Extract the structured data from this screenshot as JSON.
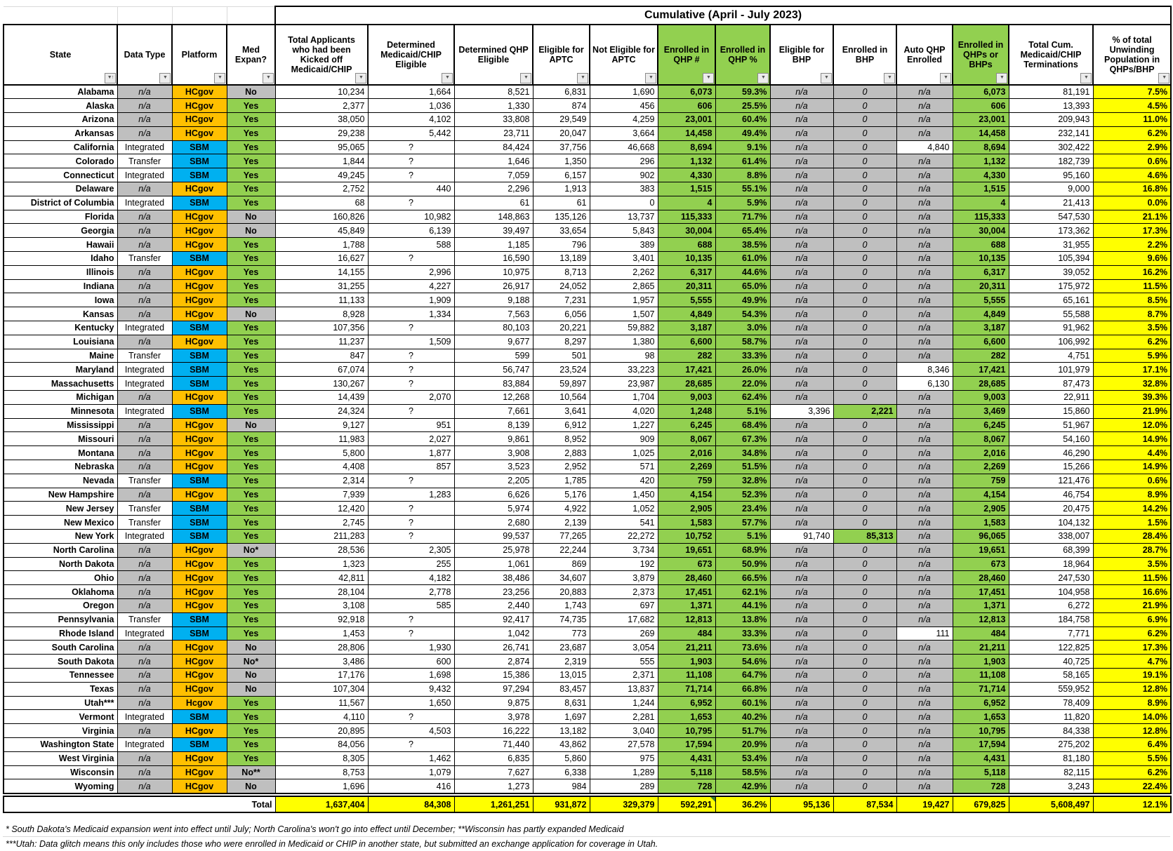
{
  "title": "Cumulative (April - July 2023)",
  "icons": {
    "filter": "▼",
    "sort_ascending": "↑"
  },
  "colors": {
    "platform_hcgov": "#FFC000",
    "platform_sbm": "#00B0F0",
    "yes_green": "#92D050",
    "no_grey": "#BFBFBF",
    "pct_yellow": "#FFFF00",
    "qhp_green": "#92D050"
  },
  "columns": [
    {
      "id": "state",
      "label": "State"
    },
    {
      "id": "data-type",
      "label": "Data Type"
    },
    {
      "id": "platform",
      "label": "Platform"
    },
    {
      "id": "med-expan",
      "label": "Med Expan?"
    },
    {
      "id": "total-applicants",
      "label": "Total Applicants who had been Kicked off Medicaid/CHIP"
    },
    {
      "id": "determined-medicaid-chip-eligible",
      "label": "Determined Medicaid/CHIP Eligible"
    },
    {
      "id": "determined-qhp-eligible",
      "label": "Determined QHP Eligible"
    },
    {
      "id": "eligible-for-aptc",
      "label": "Eligible for APTC"
    },
    {
      "id": "not-eligible-for-aptc",
      "label": "Not Eligible for APTC"
    },
    {
      "id": "enrolled-in-qhp-num",
      "label": "Enrolled in QHP #",
      "header_green": true
    },
    {
      "id": "enrolled-in-qhp-pct",
      "label": "Enrolled in QHP %",
      "header_green": true
    },
    {
      "id": "eligible-for-bhp",
      "label": "Eligible for BHP"
    },
    {
      "id": "enrolled-in-bhp",
      "label": "Enrolled in BHP"
    },
    {
      "id": "auto-qhp-enrolled",
      "label": "Auto QHP Enrolled"
    },
    {
      "id": "enrolled-in-qhps-or-bhps",
      "label": "Enrolled in QHPs or BHPs",
      "header_green": true
    },
    {
      "id": "total-cum-terminations",
      "label": "Total Cum. Medicaid/CHIP Terminations"
    },
    {
      "id": "pct-unwinding",
      "label": "% of total Unwinding Population in QHPs/BHP"
    }
  ],
  "rows": [
    [
      "Alabama",
      "n/a",
      "HCgov",
      "No",
      "10,234",
      "1,664",
      "8,521",
      "6,831",
      "1,690",
      "6,073",
      "59.3%",
      "n/a",
      "0",
      "n/a",
      "6,073",
      "81,191",
      "7.5%"
    ],
    [
      "Alaska",
      "n/a",
      "HCgov",
      "Yes",
      "2,377",
      "1,036",
      "1,330",
      "874",
      "456",
      "606",
      "25.5%",
      "n/a",
      "0",
      "n/a",
      "606",
      "13,393",
      "4.5%"
    ],
    [
      "Arizona",
      "n/a",
      "HCgov",
      "Yes",
      "38,050",
      "4,102",
      "33,808",
      "29,549",
      "4,259",
      "23,001",
      "60.4%",
      "n/a",
      "0",
      "n/a",
      "23,001",
      "209,943",
      "11.0%"
    ],
    [
      "Arkansas",
      "n/a",
      "HCgov",
      "Yes",
      "29,238",
      "5,442",
      "23,711",
      "20,047",
      "3,664",
      "14,458",
      "49.4%",
      "n/a",
      "0",
      "n/a",
      "14,458",
      "232,141",
      "6.2%"
    ],
    [
      "California",
      "Integrated",
      "SBM",
      "Yes",
      "95,065",
      "?",
      "84,424",
      "37,756",
      "46,668",
      "8,694",
      "9.1%",
      "n/a",
      "0",
      "4,840",
      "8,694",
      "302,422",
      "2.9%"
    ],
    [
      "Colorado",
      "Transfer",
      "SBM",
      "Yes",
      "1,844",
      "?",
      "1,646",
      "1,350",
      "296",
      "1,132",
      "61.4%",
      "n/a",
      "0",
      "n/a",
      "1,132",
      "182,739",
      "0.6%"
    ],
    [
      "Connecticut",
      "Integrated",
      "SBM",
      "Yes",
      "49,245",
      "?",
      "7,059",
      "6,157",
      "902",
      "4,330",
      "8.8%",
      "n/a",
      "0",
      "n/a",
      "4,330",
      "95,160",
      "4.6%"
    ],
    [
      "Delaware",
      "n/a",
      "HCgov",
      "Yes",
      "2,752",
      "440",
      "2,296",
      "1,913",
      "383",
      "1,515",
      "55.1%",
      "n/a",
      "0",
      "n/a",
      "1,515",
      "9,000",
      "16.8%"
    ],
    [
      "District of Columbia",
      "Integrated",
      "SBM",
      "Yes",
      "68",
      "?",
      "61",
      "61",
      "0",
      "4",
      "5.9%",
      "n/a",
      "0",
      "n/a",
      "4",
      "21,413",
      "0.0%"
    ],
    [
      "Florida",
      "n/a",
      "HCgov",
      "No",
      "160,826",
      "10,982",
      "148,863",
      "135,126",
      "13,737",
      "115,333",
      "71.7%",
      "n/a",
      "0",
      "n/a",
      "115,333",
      "547,530",
      "21.1%"
    ],
    [
      "Georgia",
      "n/a",
      "HCgov",
      "No",
      "45,849",
      "6,139",
      "39,497",
      "33,654",
      "5,843",
      "30,004",
      "65.4%",
      "n/a",
      "0",
      "n/a",
      "30,004",
      "173,362",
      "17.3%"
    ],
    [
      "Hawaii",
      "n/a",
      "HCgov",
      "Yes",
      "1,788",
      "588",
      "1,185",
      "796",
      "389",
      "688",
      "38.5%",
      "n/a",
      "0",
      "n/a",
      "688",
      "31,955",
      "2.2%"
    ],
    [
      "Idaho",
      "Transfer",
      "SBM",
      "Yes",
      "16,627",
      "?",
      "16,590",
      "13,189",
      "3,401",
      "10,135",
      "61.0%",
      "n/a",
      "0",
      "n/a",
      "10,135",
      "105,394",
      "9.6%"
    ],
    [
      "Illinois",
      "n/a",
      "HCgov",
      "Yes",
      "14,155",
      "2,996",
      "10,975",
      "8,713",
      "2,262",
      "6,317",
      "44.6%",
      "n/a",
      "0",
      "n/a",
      "6,317",
      "39,052",
      "16.2%"
    ],
    [
      "Indiana",
      "n/a",
      "HCgov",
      "Yes",
      "31,255",
      "4,227",
      "26,917",
      "24,052",
      "2,865",
      "20,311",
      "65.0%",
      "n/a",
      "0",
      "n/a",
      "20,311",
      "175,972",
      "11.5%"
    ],
    [
      "Iowa",
      "n/a",
      "HCgov",
      "Yes",
      "11,133",
      "1,909",
      "9,188",
      "7,231",
      "1,957",
      "5,555",
      "49.9%",
      "n/a",
      "0",
      "n/a",
      "5,555",
      "65,161",
      "8.5%"
    ],
    [
      "Kansas",
      "n/a",
      "HCgov",
      "No",
      "8,928",
      "1,334",
      "7,563",
      "6,056",
      "1,507",
      "4,849",
      "54.3%",
      "n/a",
      "0",
      "n/a",
      "4,849",
      "55,588",
      "8.7%"
    ],
    [
      "Kentucky",
      "Integrated",
      "SBM",
      "Yes",
      "107,356",
      "?",
      "80,103",
      "20,221",
      "59,882",
      "3,187",
      "3.0%",
      "n/a",
      "0",
      "n/a",
      "3,187",
      "91,962",
      "3.5%"
    ],
    [
      "Louisiana",
      "n/a",
      "HCgov",
      "Yes",
      "11,237",
      "1,509",
      "9,677",
      "8,297",
      "1,380",
      "6,600",
      "58.7%",
      "n/a",
      "0",
      "n/a",
      "6,600",
      "106,992",
      "6.2%"
    ],
    [
      "Maine",
      "Transfer",
      "SBM",
      "Yes",
      "847",
      "?",
      "599",
      "501",
      "98",
      "282",
      "33.3%",
      "n/a",
      "0",
      "n/a",
      "282",
      "4,751",
      "5.9%"
    ],
    [
      "Maryland",
      "Integrated",
      "SBM",
      "Yes",
      "67,074",
      "?",
      "56,747",
      "23,524",
      "33,223",
      "17,421",
      "26.0%",
      "n/a",
      "0",
      "8,346",
      "17,421",
      "101,979",
      "17.1%"
    ],
    [
      "Massachusetts",
      "Integrated",
      "SBM",
      "Yes",
      "130,267",
      "?",
      "83,884",
      "59,897",
      "23,987",
      "28,685",
      "22.0%",
      "n/a",
      "0",
      "6,130",
      "28,685",
      "87,473",
      "32.8%"
    ],
    [
      "Michigan",
      "n/a",
      "HCgov",
      "Yes",
      "14,439",
      "2,070",
      "12,268",
      "10,564",
      "1,704",
      "9,003",
      "62.4%",
      "n/a",
      "0",
      "n/a",
      "9,003",
      "22,911",
      "39.3%"
    ],
    [
      "Minnesota",
      "Integrated",
      "SBM",
      "Yes",
      "24,324",
      "?",
      "7,661",
      "3,641",
      "4,020",
      "1,248",
      "5.1%",
      "3,396",
      "2,221",
      "n/a",
      "3,469",
      "15,860",
      "21.9%"
    ],
    [
      "Mississippi",
      "n/a",
      "HCgov",
      "No",
      "9,127",
      "951",
      "8,139",
      "6,912",
      "1,227",
      "6,245",
      "68.4%",
      "n/a",
      "0",
      "n/a",
      "6,245",
      "51,967",
      "12.0%"
    ],
    [
      "Missouri",
      "n/a",
      "HCgov",
      "Yes",
      "11,983",
      "2,027",
      "9,861",
      "8,952",
      "909",
      "8,067",
      "67.3%",
      "n/a",
      "0",
      "n/a",
      "8,067",
      "54,160",
      "14.9%"
    ],
    [
      "Montana",
      "n/a",
      "HCgov",
      "Yes",
      "5,800",
      "1,877",
      "3,908",
      "2,883",
      "1,025",
      "2,016",
      "34.8%",
      "n/a",
      "0",
      "n/a",
      "2,016",
      "46,290",
      "4.4%"
    ],
    [
      "Nebraska",
      "n/a",
      "HCgov",
      "Yes",
      "4,408",
      "857",
      "3,523",
      "2,952",
      "571",
      "2,269",
      "51.5%",
      "n/a",
      "0",
      "n/a",
      "2,269",
      "15,266",
      "14.9%"
    ],
    [
      "Nevada",
      "Transfer",
      "SBM",
      "Yes",
      "2,314",
      "?",
      "2,205",
      "1,785",
      "420",
      "759",
      "32.8%",
      "n/a",
      "0",
      "n/a",
      "759",
      "121,476",
      "0.6%"
    ],
    [
      "New Hampshire",
      "n/a",
      "HCgov",
      "Yes",
      "7,939",
      "1,283",
      "6,626",
      "5,176",
      "1,450",
      "4,154",
      "52.3%",
      "n/a",
      "0",
      "n/a",
      "4,154",
      "46,754",
      "8.9%"
    ],
    [
      "New Jersey",
      "Transfer",
      "SBM",
      "Yes",
      "12,420",
      "?",
      "5,974",
      "4,922",
      "1,052",
      "2,905",
      "23.4%",
      "n/a",
      "0",
      "n/a",
      "2,905",
      "20,475",
      "14.2%"
    ],
    [
      "New Mexico",
      "Transfer",
      "SBM",
      "Yes",
      "2,745",
      "?",
      "2,680",
      "2,139",
      "541",
      "1,583",
      "57.7%",
      "n/a",
      "0",
      "n/a",
      "1,583",
      "104,132",
      "1.5%"
    ],
    [
      "New York",
      "Integrated",
      "SBM",
      "Yes",
      "211,283",
      "?",
      "99,537",
      "77,265",
      "22,272",
      "10,752",
      "5.1%",
      "91,740",
      "85,313",
      "n/a",
      "96,065",
      "338,007",
      "28.4%"
    ],
    [
      "North Carolina",
      "n/a",
      "HCgov",
      "No*",
      "28,536",
      "2,305",
      "25,978",
      "22,244",
      "3,734",
      "19,651",
      "68.9%",
      "n/a",
      "0",
      "n/a",
      "19,651",
      "68,399",
      "28.7%"
    ],
    [
      "North Dakota",
      "n/a",
      "HCgov",
      "Yes",
      "1,323",
      "255",
      "1,061",
      "869",
      "192",
      "673",
      "50.9%",
      "n/a",
      "0",
      "n/a",
      "673",
      "18,964",
      "3.5%"
    ],
    [
      "Ohio",
      "n/a",
      "HCgov",
      "Yes",
      "42,811",
      "4,182",
      "38,486",
      "34,607",
      "3,879",
      "28,460",
      "66.5%",
      "n/a",
      "0",
      "n/a",
      "28,460",
      "247,530",
      "11.5%"
    ],
    [
      "Oklahoma",
      "n/a",
      "HCgov",
      "Yes",
      "28,104",
      "2,778",
      "23,256",
      "20,883",
      "2,373",
      "17,451",
      "62.1%",
      "n/a",
      "0",
      "n/a",
      "17,451",
      "104,958",
      "16.6%"
    ],
    [
      "Oregon",
      "n/a",
      "HCgov",
      "Yes",
      "3,108",
      "585",
      "2,440",
      "1,743",
      "697",
      "1,371",
      "44.1%",
      "n/a",
      "0",
      "n/a",
      "1,371",
      "6,272",
      "21.9%"
    ],
    [
      "Pennsylvania",
      "Transfer",
      "SBM",
      "Yes",
      "92,918",
      "?",
      "92,417",
      "74,735",
      "17,682",
      "12,813",
      "13.8%",
      "n/a",
      "0",
      "n/a",
      "12,813",
      "184,758",
      "6.9%"
    ],
    [
      "Rhode Island",
      "Integrated",
      "SBM",
      "Yes",
      "1,453",
      "?",
      "1,042",
      "773",
      "269",
      "484",
      "33.3%",
      "n/a",
      "0",
      "111",
      "484",
      "7,771",
      "6.2%"
    ],
    [
      "South Carolina",
      "n/a",
      "HCgov",
      "No",
      "28,806",
      "1,930",
      "26,741",
      "23,687",
      "3,054",
      "21,211",
      "73.6%",
      "n/a",
      "0",
      "n/a",
      "21,211",
      "122,825",
      "17.3%"
    ],
    [
      "South Dakota",
      "n/a",
      "HCgov",
      "No*",
      "3,486",
      "600",
      "2,874",
      "2,319",
      "555",
      "1,903",
      "54.6%",
      "n/a",
      "0",
      "n/a",
      "1,903",
      "40,725",
      "4.7%"
    ],
    [
      "Tennessee",
      "n/a",
      "HCgov",
      "No",
      "17,176",
      "1,698",
      "15,386",
      "13,015",
      "2,371",
      "11,108",
      "64.7%",
      "n/a",
      "0",
      "n/a",
      "11,108",
      "58,165",
      "19.1%"
    ],
    [
      "Texas",
      "n/a",
      "HCgov",
      "No",
      "107,304",
      "9,432",
      "97,294",
      "83,457",
      "13,837",
      "71,714",
      "66.8%",
      "n/a",
      "0",
      "n/a",
      "71,714",
      "559,952",
      "12.8%"
    ],
    [
      "Utah***",
      "n/a",
      "Hcgov",
      "Yes",
      "11,567",
      "1,650",
      "9,875",
      "8,631",
      "1,244",
      "6,952",
      "60.1%",
      "n/a",
      "0",
      "n/a",
      "6,952",
      "78,409",
      "8.9%"
    ],
    [
      "Vermont",
      "Integrated",
      "SBM",
      "Yes",
      "4,110",
      "?",
      "3,978",
      "1,697",
      "2,281",
      "1,653",
      "40.2%",
      "n/a",
      "0",
      "n/a",
      "1,653",
      "11,820",
      "14.0%"
    ],
    [
      "Virginia",
      "n/a",
      "HCgov",
      "Yes",
      "20,895",
      "4,503",
      "16,222",
      "13,182",
      "3,040",
      "10,795",
      "51.7%",
      "n/a",
      "0",
      "n/a",
      "10,795",
      "84,338",
      "12.8%"
    ],
    [
      "Washington State",
      "Integrated",
      "SBM",
      "Yes",
      "84,056",
      "?",
      "71,440",
      "43,862",
      "27,578",
      "17,594",
      "20.9%",
      "n/a",
      "0",
      "n/a",
      "17,594",
      "275,202",
      "6.4%"
    ],
    [
      "West Virginia",
      "n/a",
      "HCgov",
      "Yes",
      "8,305",
      "1,462",
      "6,835",
      "5,860",
      "975",
      "4,431",
      "53.4%",
      "n/a",
      "0",
      "n/a",
      "4,431",
      "81,180",
      "5.5%"
    ],
    [
      "Wisconsin",
      "n/a",
      "HCgov",
      "No**",
      "8,753",
      "1,079",
      "7,627",
      "6,338",
      "1,289",
      "5,118",
      "58.5%",
      "n/a",
      "0",
      "n/a",
      "5,118",
      "82,115",
      "6.2%"
    ],
    [
      "Wyoming",
      "n/a",
      "HCgov",
      "No",
      "1,696",
      "416",
      "1,273",
      "984",
      "289",
      "728",
      "42.9%",
      "n/a",
      "0",
      "n/a",
      "728",
      "3,243",
      "22.4%"
    ]
  ],
  "total": {
    "label": "Total",
    "values": [
      "1,637,404",
      "84,308",
      "1,261,251",
      "931,872",
      "329,379",
      "592,291",
      "36.2%",
      "95,136",
      "87,534",
      "19,427",
      "679,825",
      "5,608,497",
      "12.1%"
    ]
  },
  "footnotes": [
    "* South Dakota's Medicaid expansion went into effect until July; North Carolina's won't go into effect until December; **Wisconsin has partly expanded Medicaid",
    "***Utah: Data glitch means this only includes those who were enrolled in Medicaid or CHIP in another state, but submitted an exchange application for coverage in Utah."
  ]
}
